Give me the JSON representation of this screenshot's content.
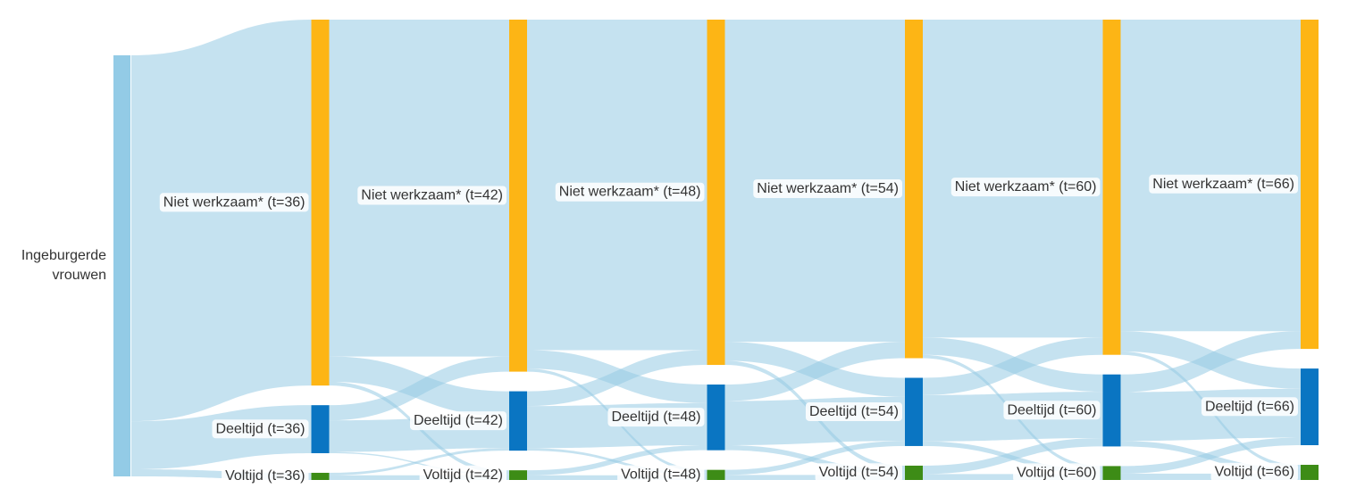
{
  "chart_data": {
    "type": "sankey",
    "nodes": [
      {
        "label": "Ingeburgerde vrouwen",
        "color": "#93cbe6"
      },
      {
        "label": "Niet werkzaam* (t=36)",
        "color": "#fdb515"
      },
      {
        "label": "Deeltijd (t=36)",
        "color": "#0a75c2"
      },
      {
        "label": "Voltijd (t=36)",
        "color": "#3d8c16"
      },
      {
        "label": "Niet werkzaam* (t=42)",
        "color": "#fdb515"
      },
      {
        "label": "Deeltijd (t=42)",
        "color": "#0a75c2"
      },
      {
        "label": "Voltijd (t=42)",
        "color": "#3d8c16"
      },
      {
        "label": "Niet werkzaam* (t=48)",
        "color": "#fdb515"
      },
      {
        "label": "Deeltijd (t=48)",
        "color": "#0a75c2"
      },
      {
        "label": "Voltijd (t=48)",
        "color": "#3d8c16"
      },
      {
        "label": "Niet werkzaam* (t=54)",
        "color": "#fdb515"
      },
      {
        "label": "Deeltijd (t=54)",
        "color": "#0a75c2"
      },
      {
        "label": "Voltijd (t=54)",
        "color": "#3d8c16"
      },
      {
        "label": "Niet werkzaam* (t=60)",
        "color": "#fdb515"
      },
      {
        "label": "Deeltijd (t=60)",
        "color": "#0a75c2"
      },
      {
        "label": "Voltijd (t=60)",
        "color": "#3d8c16"
      },
      {
        "label": "Niet werkzaam* (t=66)",
        "color": "#fdb515"
      },
      {
        "label": "Deeltijd (t=66)",
        "color": "#0a75c2"
      },
      {
        "label": "Voltijd (t=66)",
        "color": "#3d8c16"
      }
    ],
    "link_color": "rgba(150,202,228,0.55)",
    "links": [
      {
        "source": 0,
        "target": 1,
        "value": 86.9
      },
      {
        "source": 0,
        "target": 2,
        "value": 11.4
      },
      {
        "source": 0,
        "target": 3,
        "value": 1.7
      },
      {
        "source": 1,
        "target": 4,
        "value": 80.0
      },
      {
        "source": 1,
        "target": 5,
        "value": 6.0
      },
      {
        "source": 1,
        "target": 6,
        "value": 0.9
      },
      {
        "source": 2,
        "target": 4,
        "value": 3.6
      },
      {
        "source": 2,
        "target": 5,
        "value": 7.5
      },
      {
        "source": 2,
        "target": 6,
        "value": 0.3
      },
      {
        "source": 3,
        "target": 5,
        "value": 0.6
      },
      {
        "source": 3,
        "target": 6,
        "value": 1.1
      },
      {
        "source": 4,
        "target": 7,
        "value": 78.5
      },
      {
        "source": 4,
        "target": 8,
        "value": 4.4
      },
      {
        "source": 4,
        "target": 9,
        "value": 0.7
      },
      {
        "source": 5,
        "target": 7,
        "value": 3.5
      },
      {
        "source": 5,
        "target": 8,
        "value": 10.0
      },
      {
        "source": 5,
        "target": 9,
        "value": 0.6
      },
      {
        "source": 6,
        "target": 8,
        "value": 1.2
      },
      {
        "source": 6,
        "target": 9,
        "value": 1.1
      },
      {
        "source": 7,
        "target": 10,
        "value": 76.5
      },
      {
        "source": 7,
        "target": 11,
        "value": 4.5
      },
      {
        "source": 7,
        "target": 12,
        "value": 1.0
      },
      {
        "source": 8,
        "target": 10,
        "value": 3.9
      },
      {
        "source": 8,
        "target": 11,
        "value": 10.5
      },
      {
        "source": 8,
        "target": 12,
        "value": 1.2
      },
      {
        "source": 9,
        "target": 11,
        "value": 1.2
      },
      {
        "source": 9,
        "target": 12,
        "value": 1.2
      },
      {
        "source": 10,
        "target": 13,
        "value": 75.5
      },
      {
        "source": 10,
        "target": 14,
        "value": 4.1
      },
      {
        "source": 10,
        "target": 15,
        "value": 0.8
      },
      {
        "source": 11,
        "target": 13,
        "value": 4.1
      },
      {
        "source": 11,
        "target": 14,
        "value": 11.0
      },
      {
        "source": 11,
        "target": 15,
        "value": 1.1
      },
      {
        "source": 12,
        "target": 14,
        "value": 2.0
      },
      {
        "source": 12,
        "target": 15,
        "value": 1.4
      },
      {
        "source": 13,
        "target": 16,
        "value": 74.0
      },
      {
        "source": 13,
        "target": 17,
        "value": 4.8
      },
      {
        "source": 13,
        "target": 18,
        "value": 0.8
      },
      {
        "source": 14,
        "target": 16,
        "value": 4.2
      },
      {
        "source": 14,
        "target": 17,
        "value": 11.6
      },
      {
        "source": 14,
        "target": 18,
        "value": 1.3
      },
      {
        "source": 15,
        "target": 17,
        "value": 1.8
      },
      {
        "source": 15,
        "target": 18,
        "value": 1.5
      }
    ]
  }
}
